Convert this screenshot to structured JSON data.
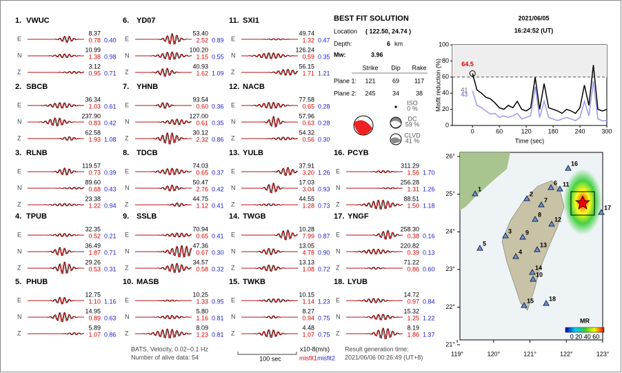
{
  "header": {
    "date": "2021/06/05",
    "time": "16:24:52  (UT)"
  },
  "solution": {
    "title": "BEST FIT SOLUTION",
    "location_label": "Location",
    "location": "( 122.50, 24.74 )",
    "depth_label": "Depth:",
    "depth": "6",
    "depth_unit": "km",
    "mw_label": "Mw:",
    "mw": "3.96",
    "columns": [
      "Strike",
      "Dip",
      "Rake"
    ],
    "planes": [
      {
        "label": "Plane 1:",
        "values": [
          "121",
          "69",
          "117"
        ]
      },
      {
        "label": "Plane 2:",
        "values": [
          "245",
          "34",
          "38"
        ]
      }
    ],
    "components": [
      {
        "name": "ISO",
        "percent": "0 %"
      },
      {
        "name": "DC",
        "percent": "59 %"
      },
      {
        "name": "CLVD",
        "percent": "41 %"
      }
    ]
  },
  "stations": [
    {
      "label": "1.",
      "name": "VWUC",
      "components": [
        {
          "comp": "E",
          "amp": "8.37",
          "misfit1": "0.78",
          "misfit2": "0.40"
        },
        {
          "comp": "N",
          "amp": "10.99",
          "misfit1": "1.38",
          "misfit2": "0.98"
        },
        {
          "comp": "Z",
          "amp": "3.12",
          "misfit1": "0.95",
          "misfit2": "0.71"
        }
      ]
    },
    {
      "label": "2.",
      "name": "SBCB",
      "components": [
        {
          "comp": "E",
          "amp": "36.34",
          "misfit1": "1.03",
          "misfit2": "0.61"
        },
        {
          "comp": "N",
          "amp": "237.90",
          "misfit1": "0.83",
          "misfit2": "0.42"
        },
        {
          "comp": "Z",
          "amp": "62.58",
          "misfit1": "1.93",
          "misfit2": "1.08"
        }
      ]
    },
    {
      "label": "3.",
      "name": "RLNB",
      "components": [
        {
          "comp": "E",
          "amp": "119.57",
          "misfit1": "0.73",
          "misfit2": "0.39"
        },
        {
          "comp": "N",
          "amp": "89.60",
          "misfit1": "0.68",
          "misfit2": "0.43"
        },
        {
          "comp": "Z",
          "amp": "23.38",
          "misfit1": "1.22",
          "misfit2": "0.94"
        }
      ]
    },
    {
      "label": "4.",
      "name": "TPUB",
      "components": [
        {
          "comp": "E",
          "amp": "32.35",
          "misfit1": "0.52",
          "misfit2": "0.21"
        },
        {
          "comp": "N",
          "amp": "36.49",
          "misfit1": "1.87",
          "misfit2": "0.71"
        },
        {
          "comp": "Z",
          "amp": "29.26",
          "misfit1": "0.53",
          "misfit2": "0.31"
        }
      ]
    },
    {
      "label": "5.",
      "name": "PHUB",
      "components": [
        {
          "comp": "E",
          "amp": "12.75",
          "misfit1": "1.10",
          "misfit2": "1.16"
        },
        {
          "comp": "N",
          "amp": "14.95",
          "misfit1": "0.89",
          "misfit2": "0.63"
        },
        {
          "comp": "Z",
          "amp": "5.89",
          "misfit1": "1.07",
          "misfit2": "0.86"
        }
      ]
    },
    {
      "label": "6.",
      "name": "YD07",
      "components": [
        {
          "comp": "E",
          "amp": "53.40",
          "misfit1": "2.52",
          "misfit2": "0.89"
        },
        {
          "comp": "N",
          "amp": "100.20",
          "misfit1": "1.15",
          "misfit2": "0.55"
        },
        {
          "comp": "Z",
          "amp": "40.93",
          "misfit1": "1.62",
          "misfit2": "1.09"
        }
      ]
    },
    {
      "label": "7.",
      "name": "YHNB",
      "components": [
        {
          "comp": "E",
          "amp": "93.54",
          "misfit1": "0.60",
          "misfit2": "0.36"
        },
        {
          "comp": "N",
          "amp": "127.00",
          "misfit1": "0.61",
          "misfit2": "0.35"
        },
        {
          "comp": "Z",
          "amp": "30.12",
          "misfit1": "2.32",
          "misfit2": "0.86"
        }
      ]
    },
    {
      "label": "8.",
      "name": "TDCB",
      "components": [
        {
          "comp": "E",
          "amp": "74.03",
          "misfit1": "0.65",
          "misfit2": "0.37"
        },
        {
          "comp": "N",
          "amp": "50.47",
          "misfit1": "2.76",
          "misfit2": "0.42"
        },
        {
          "comp": "Z",
          "amp": "44.75",
          "misfit1": "1.12",
          "misfit2": "0.41"
        }
      ]
    },
    {
      "label": "9.",
      "name": "SSLB",
      "components": [
        {
          "comp": "E",
          "amp": "70.94",
          "misfit1": "0.65",
          "misfit2": "0.41"
        },
        {
          "comp": "N",
          "amp": "47.36",
          "misfit1": "0.67",
          "misfit2": "0.30"
        },
        {
          "comp": "Z",
          "amp": "34.57",
          "misfit1": "0.58",
          "misfit2": "0.32"
        }
      ]
    },
    {
      "label": "10.",
      "name": "MASB",
      "components": [
        {
          "comp": "E",
          "amp": "10.25",
          "misfit1": "1.33",
          "misfit2": "0.95"
        },
        {
          "comp": "N",
          "amp": "5.80",
          "misfit1": "1.16",
          "misfit2": "0.81"
        },
        {
          "comp": "Z",
          "amp": "8.09",
          "misfit1": "1.23",
          "misfit2": "0.81"
        }
      ]
    },
    {
      "label": "11.",
      "name": "SXI1",
      "components": [
        {
          "comp": "E",
          "amp": "49.74",
          "misfit1": "1.32",
          "misfit2": "0.47"
        },
        {
          "comp": "N",
          "amp": "126.24",
          "misfit1": "0.59",
          "misfit2": "0.35"
        },
        {
          "comp": "Z",
          "amp": "56.15",
          "misfit1": "1.71",
          "misfit2": "1.21"
        }
      ]
    },
    {
      "label": "12.",
      "name": "NACB",
      "components": [
        {
          "comp": "E",
          "amp": "77.58",
          "misfit1": "0.65",
          "misfit2": "0.28"
        },
        {
          "comp": "N",
          "amp": "57.96",
          "misfit1": "0.63",
          "misfit2": "0.28"
        },
        {
          "comp": "Z",
          "amp": "54.32",
          "misfit1": "0.56",
          "misfit2": "0.30"
        }
      ]
    },
    {
      "label": "13.",
      "name": "YULB",
      "components": [
        {
          "comp": "E",
          "amp": "37.91",
          "misfit1": "3.20",
          "misfit2": "1.26"
        },
        {
          "comp": "N",
          "amp": "17.03",
          "misfit1": "3.04",
          "misfit2": "0.93"
        },
        {
          "comp": "Z",
          "amp": "44.55",
          "misfit1": "1.28",
          "misfit2": "0.73"
        }
      ]
    },
    {
      "label": "14.",
      "name": "TWGB",
      "components": [
        {
          "comp": "E",
          "amp": "10.28",
          "misfit1": "7.99",
          "misfit2": "0.87"
        },
        {
          "comp": "N",
          "amp": "13.05",
          "misfit1": "4.78",
          "misfit2": "0.90"
        },
        {
          "comp": "Z",
          "amp": "13.13",
          "misfit1": "1.08",
          "misfit2": "0.72"
        }
      ]
    },
    {
      "label": "15.",
      "name": "TWKB",
      "components": [
        {
          "comp": "E",
          "amp": "10.15",
          "misfit1": "1.14",
          "misfit2": "1.23"
        },
        {
          "comp": "N",
          "amp": "8.27",
          "misfit1": "0.94",
          "misfit2": "0.75"
        },
        {
          "comp": "Z",
          "amp": "4.48",
          "misfit1": "1.07",
          "misfit2": "0.75"
        }
      ]
    },
    {
      "label": "16.",
      "name": "PCYB",
      "components": [
        {
          "comp": "E",
          "amp": "311.29",
          "misfit1": "1.56",
          "misfit2": "1.70"
        },
        {
          "comp": "N",
          "amp": "256.28",
          "misfit1": "1.31",
          "misfit2": "1.26"
        },
        {
          "comp": "Z",
          "amp": "88.51",
          "misfit1": "1.50",
          "misfit2": "1.18"
        }
      ]
    },
    {
      "label": "17.",
      "name": "YNGF",
      "components": [
        {
          "comp": "E",
          "amp": "258.30",
          "misfit1": "0.38",
          "misfit2": "0.16"
        },
        {
          "comp": "N",
          "amp": "220.82",
          "misfit1": "0.39",
          "misfit2": "0.13"
        },
        {
          "comp": "Z",
          "amp": "71.22",
          "misfit1": "0.86",
          "misfit2": "0.60"
        }
      ]
    },
    {
      "label": "18.",
      "name": "LYUB",
      "components": [
        {
          "comp": "E",
          "amp": "14.72",
          "misfit1": "0.97",
          "misfit2": "0.84"
        },
        {
          "comp": "N",
          "amp": "15.32",
          "misfit1": "1.25",
          "misfit2": "1.22"
        },
        {
          "comp": "Z",
          "amp": "8.19",
          "misfit1": "1.86",
          "misfit2": "1.37"
        }
      ]
    }
  ],
  "footer": {
    "info": "BATS, Velocity, 0.02~0.1 Hz",
    "alive": "Number of alive data: 54",
    "scale": "100 sec",
    "unit": "x10-8(m/s)",
    "misfit1": "misfit1",
    "misfit2": "misfit2",
    "result_label": "Result generation time:",
    "result_time": "2021/06/06 00:26:49 (UT+8)"
  },
  "map": {
    "xticks": [
      {
        "value": 119,
        "label": "119°"
      },
      {
        "value": 120,
        "label": "120°"
      },
      {
        "value": 121,
        "label": "121°"
      },
      {
        "value": 122,
        "label": "122°"
      },
      {
        "value": 123,
        "label": "123°"
      }
    ],
    "yticks": [
      {
        "value": 21,
        "label": "21°"
      },
      {
        "value": 22,
        "label": "22°"
      },
      {
        "value": 23,
        "label": "23°"
      },
      {
        "value": 24,
        "label": "24°"
      },
      {
        "value": 25,
        "label": "25°"
      },
      {
        "value": 26,
        "label": "26°"
      }
    ],
    "stations": [
      "1",
      "2",
      "3",
      "4",
      "5",
      "6",
      "7",
      "8",
      "9",
      "10",
      "11",
      "12",
      "13",
      "14",
      "15",
      "16",
      "17",
      "18"
    ],
    "colorbar_title": "MR",
    "colorbar_ticks": "0 20 40 60"
  },
  "chart_data": {
    "type": "line",
    "xlabel": "Time (sec)",
    "ylabel": "Misfit reduction (%)",
    "x": [
      0,
      10,
      20,
      30,
      40,
      50,
      60,
      70,
      80,
      90,
      100,
      110,
      120,
      130,
      140,
      150,
      160,
      170,
      180,
      190,
      200,
      210,
      220,
      230,
      240,
      250,
      260,
      270,
      280,
      290,
      300
    ],
    "series": [
      {
        "color": "#000000",
        "values": [
          64.5,
          44,
          40,
          35,
          33,
          28,
          22,
          20,
          25,
          22,
          30,
          20,
          18,
          22,
          60,
          20,
          52,
          22,
          20,
          18,
          15,
          20,
          18,
          15,
          22,
          50,
          25,
          75,
          20,
          18,
          20
        ]
      },
      {
        "color": "#9999ee",
        "values": [
          43,
          25,
          22,
          18,
          14,
          15,
          10,
          12,
          10,
          12,
          15,
          8,
          10,
          12,
          48,
          10,
          30,
          10,
          8,
          6,
          8,
          10,
          8,
          6,
          10,
          30,
          12,
          55,
          8,
          6,
          6
        ]
      }
    ],
    "annotations": [
      {
        "x": 0,
        "y": 64.5,
        "text": "64.5",
        "color": "#dd0000"
      },
      {
        "x": 0,
        "y": 41,
        "text": "41",
        "color": "#999999"
      },
      {
        "x": 0,
        "y": 43,
        "text": "43",
        "color": "#8888ee"
      }
    ],
    "threshold": 60,
    "xlim": [
      -45,
      300
    ],
    "ylim": [
      0,
      100
    ],
    "xticks": [
      0,
      60,
      120,
      180,
      240,
      300
    ],
    "yticks": [
      0,
      20,
      40,
      60,
      80,
      100
    ]
  }
}
